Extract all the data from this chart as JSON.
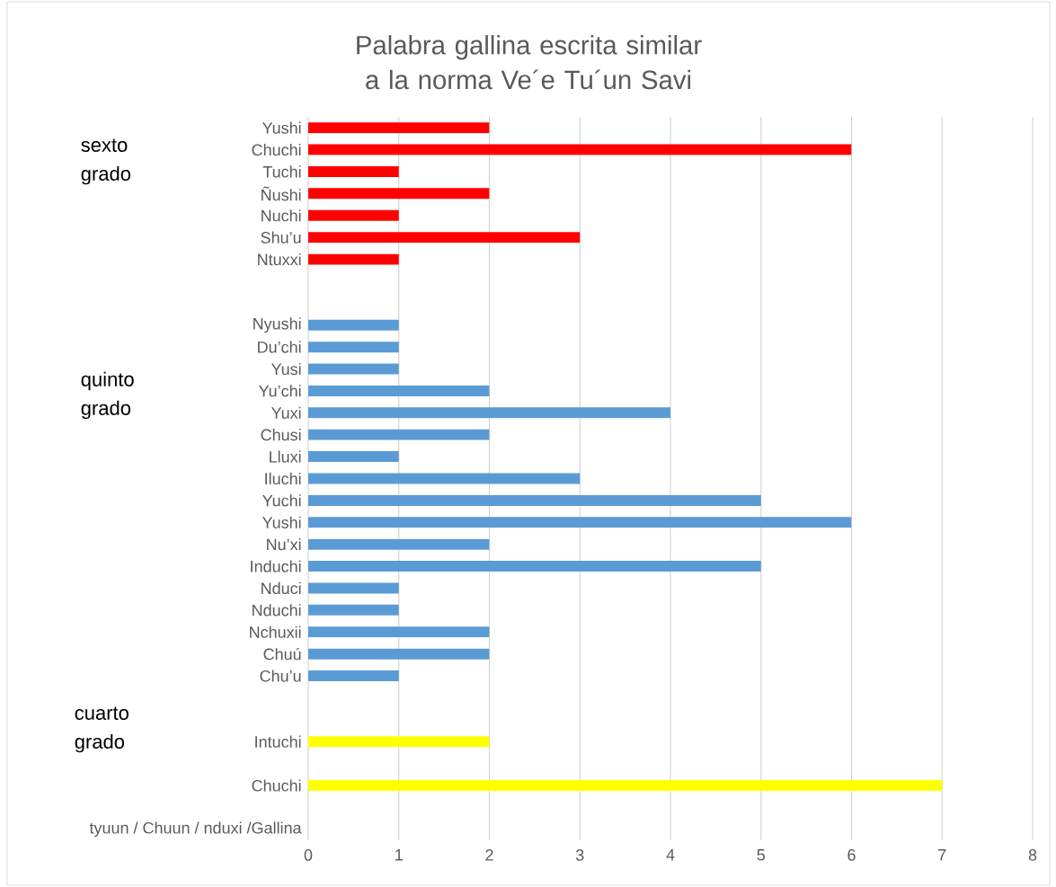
{
  "chart_data": {
    "type": "bar",
    "orientation": "horizontal",
    "title": "Palabra gallina escrita similar a la norma Ve´e Tu´un Savi",
    "categories": [
      "Yushi",
      "Chuchi",
      "Tuchi",
      "Ñushi",
      "Nuchi",
      "Shu’u",
      "Ntuxxi",
      null,
      null,
      "Nyushi",
      "Du’chi",
      "Yusi",
      "Yu’chi",
      "Yuxi",
      "Chusi",
      "Lluxi",
      "Iluchi",
      "Yuchi",
      "Yushi",
      "Nu’xi",
      "Induchi",
      "Nduci",
      "Nduchi",
      "Nchuxii",
      "Chuú",
      "Chu’u",
      null,
      null,
      "Intuchi",
      null,
      "Chuchi",
      null,
      "tyuun / Chuun / nduxi /Gallina"
    ],
    "values": [
      2,
      6,
      1,
      2,
      1,
      3,
      1,
      null,
      null,
      1,
      1,
      1,
      2,
      4,
      2,
      1,
      3,
      5,
      6,
      2,
      5,
      1,
      1,
      2,
      2,
      1,
      null,
      null,
      2,
      null,
      7,
      null,
      null
    ],
    "colors": [
      "#ff0000",
      "#ff0000",
      "#ff0000",
      "#ff0000",
      "#ff0000",
      "#ff0000",
      "#ff0000",
      null,
      null,
      "#5b9bd5",
      "#5b9bd5",
      "#5b9bd5",
      "#5b9bd5",
      "#5b9bd5",
      "#5b9bd5",
      "#5b9bd5",
      "#5b9bd5",
      "#5b9bd5",
      "#5b9bd5",
      "#5b9bd5",
      "#5b9bd5",
      "#5b9bd5",
      "#5b9bd5",
      "#5b9bd5",
      "#5b9bd5",
      "#5b9bd5",
      null,
      null,
      "#ffff00",
      null,
      "#ffff00",
      null,
      null
    ],
    "xlim": [
      0,
      8
    ],
    "xticks": [
      0,
      1,
      2,
      3,
      4,
      5,
      6,
      7,
      8
    ],
    "grid": "x",
    "annotations": [
      "sexto grado",
      "quinto grado",
      "cuarto grado"
    ]
  }
}
